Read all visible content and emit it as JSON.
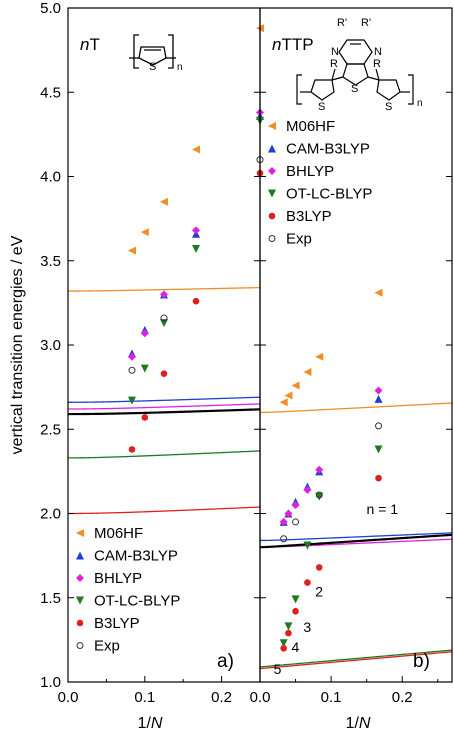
{
  "chart_data": {
    "type": "scatter",
    "ylabel": "vertical transition energies / eV",
    "xlabel_main": "1/",
    "xlabel_italic": "N",
    "ylim": [
      1.0,
      5.0
    ],
    "yticks": [
      "1.0",
      "1.5",
      "2.0",
      "2.5",
      "3.0",
      "3.5",
      "4.0",
      "4.5",
      "5.0"
    ],
    "colors": {
      "M06HF": "#f28c28",
      "CAM-B3LYP": "#1f3fd6",
      "BHLYP": "#e020e0",
      "OT-LC-BLYP": "#1e7a1e",
      "B3LYP": "#e0201e",
      "Exp": "#333333",
      "fit": "#000000"
    },
    "panels": [
      {
        "title_italic": "n",
        "title_rest": "T",
        "letter": "a)",
        "xlim": [
          0.0,
          0.25
        ],
        "xticks": [
          "0.0",
          "0.1",
          "0.2"
        ],
        "legend_position": "bottom-left",
        "monomer_label": "S",
        "monomer_subscript": "n",
        "series": [
          {
            "name": "M06HF",
            "marker": "triangle-left",
            "points": [
              [
                0.0833,
                3.56
              ],
              [
                0.1,
                3.67
              ],
              [
                0.125,
                3.85
              ],
              [
                0.1667,
                4.16
              ],
              [
                0.25,
                4.88
              ]
            ],
            "curve": [
              3.32,
              0.1,
              0.047
            ]
          },
          {
            "name": "CAM-B3LYP",
            "marker": "triangle-up",
            "points": [
              [
                0.0833,
                2.95
              ],
              [
                0.1,
                3.09
              ],
              [
                0.125,
                3.3
              ],
              [
                0.1667,
                3.66
              ],
              [
                0.25,
                4.36
              ]
            ],
            "curve": [
              2.66,
              0.16,
              0.07
            ]
          },
          {
            "name": "BHLYP",
            "marker": "diamond",
            "points": [
              [
                0.0833,
                2.93
              ],
              [
                0.1,
                3.07
              ],
              [
                0.125,
                3.3
              ],
              [
                0.1667,
                3.68
              ],
              [
                0.25,
                4.38
              ]
            ],
            "curve": [
              2.62,
              0.16,
              0.07
            ]
          },
          {
            "name": "OT-LC-BLYP",
            "marker": "triangle-down",
            "points": [
              [
                0.0833,
                2.67
              ],
              [
                0.1,
                2.86
              ],
              [
                0.125,
                3.13
              ],
              [
                0.1667,
                3.57
              ],
              [
                0.25,
                4.33
              ]
            ],
            "curve": [
              2.33,
              0.21,
              0.06
            ]
          },
          {
            "name": "B3LYP",
            "marker": "circle-filled",
            "points": [
              [
                0.0833,
                2.38
              ],
              [
                0.1,
                2.57
              ],
              [
                0.125,
                2.83
              ],
              [
                0.1667,
                3.26
              ],
              [
                0.25,
                4.02
              ]
            ],
            "curve": [
              2.0,
              0.21,
              0.08
            ]
          },
          {
            "name": "Exp",
            "marker": "circle-open",
            "points": [
              [
                0.0833,
                2.85
              ],
              [
                0.125,
                3.16
              ],
              [
                0.25,
                4.1
              ]
            ],
            "curve": null
          }
        ],
        "fit_curve": [
          2.59,
          0.16,
          0.09
        ]
      },
      {
        "title_italic": "n",
        "title_rest": "TTP",
        "letter": "b)",
        "xlim": [
          0.0,
          0.27
        ],
        "xticks": [
          "0.0",
          "0.1",
          "0.2"
        ],
        "legend_position": "top-left",
        "monomer_labels": [
          "R'",
          "R'",
          "N",
          "N",
          "S",
          "S",
          "S",
          "R",
          "R"
        ],
        "monomer_subscript": "n",
        "series": [
          {
            "name": "M06HF",
            "marker": "triangle-left",
            "points": [
              [
                0.0333,
                2.66
              ],
              [
                0.04,
                2.7
              ],
              [
                0.05,
                2.76
              ],
              [
                0.0667,
                2.84
              ],
              [
                0.0833,
                2.93
              ],
              [
                0.1667,
                3.31
              ]
            ],
            "curve": [
              2.6,
              0.22,
              0.018
            ]
          },
          {
            "name": "CAM-B3LYP",
            "marker": "triangle-up",
            "points": [
              [
                0.0333,
                1.95
              ],
              [
                0.04,
                2.0
              ],
              [
                0.05,
                2.07
              ],
              [
                0.0667,
                2.16
              ],
              [
                0.0833,
                2.25
              ],
              [
                0.1667,
                2.68
              ]
            ],
            "curve": [
              1.84,
              0.18,
              0.021
            ]
          },
          {
            "name": "BHLYP",
            "marker": "diamond",
            "points": [
              [
                0.0333,
                1.95
              ],
              [
                0.04,
                2.0
              ],
              [
                0.05,
                2.05
              ],
              [
                0.0667,
                2.14
              ],
              [
                0.0833,
                2.26
              ],
              [
                0.1667,
                2.73
              ]
            ],
            "curve": [
              1.8,
              0.19,
              0.021
            ]
          },
          {
            "name": "OT-LC-BLYP",
            "marker": "triangle-down",
            "points": [
              [
                0.0333,
                1.23
              ],
              [
                0.04,
                1.33
              ],
              [
                0.05,
                1.49
              ],
              [
                0.0667,
                1.81
              ],
              [
                0.0833,
                2.1
              ],
              [
                0.1667,
                2.38
              ]
            ],
            "curve": [
              1.09,
              0.37,
              0.0015
            ]
          },
          {
            "name": "B3LYP",
            "marker": "circle-filled",
            "points": [
              [
                0.0333,
                1.2
              ],
              [
                0.04,
                1.29
              ],
              [
                0.05,
                1.42
              ],
              [
                0.0667,
                1.59
              ],
              [
                0.0833,
                1.68
              ],
              [
                0.1667,
                2.21
              ]
            ],
            "curve": [
              1.08,
              0.37,
              0.0012
            ]
          },
          {
            "name": "Exp",
            "marker": "circle-open",
            "points": [
              [
                0.0333,
                1.85
              ],
              [
                0.05,
                1.95
              ],
              [
                0.0833,
                2.11
              ],
              [
                0.1667,
                2.52
              ]
            ],
            "curve": null
          }
        ],
        "fit_curve": [
          1.8,
          0.28,
          0.0075
        ],
        "n_labels": [
          {
            "text": "n = 1",
            "x": 0.1667,
            "y": 2.08
          },
          {
            "text": "2",
            "x": 0.0833,
            "y": 1.59
          },
          {
            "text": "3",
            "x": 0.0667,
            "y": 1.38
          },
          {
            "text": "4",
            "x": 0.05,
            "y": 1.26
          },
          {
            "text": "5",
            "x": 0.0333,
            "y": 1.13
          }
        ]
      }
    ]
  }
}
